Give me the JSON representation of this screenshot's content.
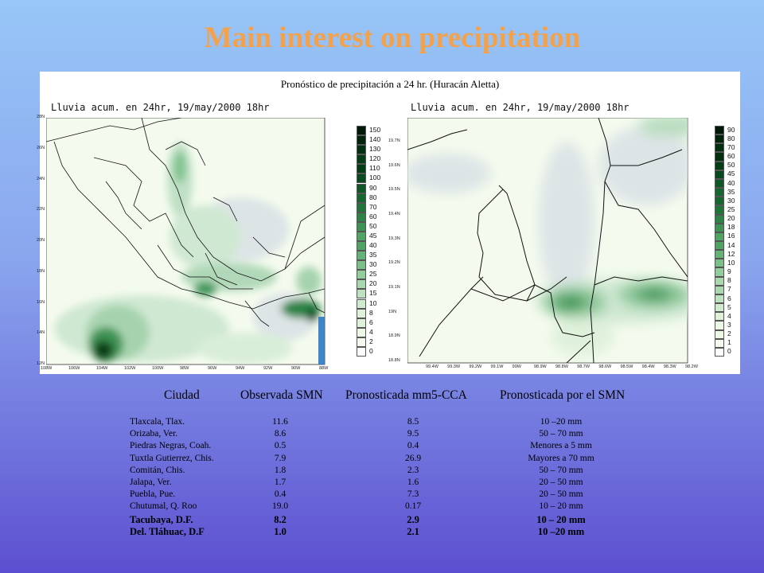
{
  "slide": {
    "title": "Main interest on precipitation"
  },
  "figure": {
    "heading": "Pronóstico de precipitación a 24 hr. (Huracán Aletta)",
    "left_map": {
      "title": "Lluvia acum. en 24hr, 19/may/2000 18hr",
      "lat_ticks": [
        "28N",
        "26N",
        "24N",
        "22N",
        "20N",
        "18N",
        "16N",
        "14N",
        "12N"
      ],
      "lon_ticks": [
        "108W",
        "106W",
        "104W",
        "102W",
        "100W",
        "98W",
        "96W",
        "94W",
        "92W",
        "90W",
        "88W"
      ]
    },
    "right_map": {
      "title": "Lluvia acum. en 24hr, 19/may/2000 18hr",
      "lat_ticks": [
        "19.7N",
        "19.6N",
        "19.5N",
        "19.4N",
        "19.3N",
        "19.2N",
        "19.1N",
        "19N",
        "18.9N",
        "18.8N"
      ],
      "lon_ticks": [
        "99.4W",
        "99.3W",
        "99.2W",
        "99.1W",
        "99W",
        "98.9W",
        "98.8W",
        "98.7W",
        "98.6W",
        "98.5W",
        "98.4W",
        "98.3W",
        "98.2W"
      ]
    },
    "left_colorbar": [
      "150",
      "140",
      "130",
      "120",
      "110",
      "100",
      "90",
      "80",
      "70",
      "60",
      "50",
      "45",
      "40",
      "35",
      "30",
      "25",
      "20",
      "15",
      "10",
      "8",
      "6",
      "4",
      "2",
      "0"
    ],
    "right_colorbar": [
      "90",
      "80",
      "70",
      "60",
      "50",
      "45",
      "40",
      "35",
      "30",
      "25",
      "20",
      "18",
      "16",
      "14",
      "12",
      "10",
      "9",
      "8",
      "7",
      "6",
      "5",
      "4",
      "3",
      "2",
      "1",
      "0"
    ],
    "palette": [
      "#ffffff",
      "#f4fbee",
      "#ecf7e6",
      "#dff1da",
      "#cfeacd",
      "#bde2bf",
      "#a9d8ae",
      "#92cd9c",
      "#7bc089",
      "#64b276",
      "#4fa363",
      "#3d9353",
      "#2e8446",
      "#21753a",
      "#166630",
      "#0d5826",
      "#074a1d",
      "#033d16",
      "#013010",
      "#00240b",
      "#001808"
    ],
    "map_background": "#f4fbee",
    "dry_region": "#dde4e6"
  },
  "table": {
    "headers": [
      "Ciudad",
      "Observada SMN",
      "Pronosticada mm5-CCA",
      "Pronosticada por el  SMN"
    ],
    "rows": [
      {
        "city": "Tlaxcala, Tlax.",
        "observed": "11.6",
        "mm5": "8.5",
        "smn": "10 –20 mm",
        "bold": false
      },
      {
        "city": "Orizaba, Ver.",
        "observed": "8.6",
        "mm5": "9.5",
        "smn": "50 – 70 mm",
        "bold": false
      },
      {
        "city": "Piedras Negras, Coah.",
        "observed": "0.5",
        "mm5": "0.4",
        "smn": "Menores a 5 mm",
        "bold": false
      },
      {
        "city": "Tuxtla Gutierrez, Chis.",
        "observed": "7.9",
        "mm5": "26.9",
        "smn": "Mayores a 70 mm",
        "bold": false
      },
      {
        "city": "Comitán, Chis.",
        "observed": "1.8",
        "mm5": "2.3",
        "smn": "50 – 70 mm",
        "bold": false
      },
      {
        "city": "Jalapa, Ver.",
        "observed": "1.7",
        "mm5": "1.6",
        "smn": "20 – 50 mm",
        "bold": false
      },
      {
        "city": "Puebla, Pue.",
        "observed": "0.4",
        "mm5": "7.3",
        "smn": "20 – 50 mm",
        "bold": false
      },
      {
        "city": "Chutumal, Q. Roo",
        "observed": "19.0",
        "mm5": "0.17",
        "smn": "10 – 20 mm",
        "bold": false
      },
      {
        "city": "Tacubaya, D.F.",
        "observed": "8.2",
        "mm5": "2.9",
        "smn": "10 – 20 mm",
        "bold": true
      },
      {
        "city": "Del. Tláhuac, D.F",
        "observed": "1.0",
        "mm5": "2.1",
        "smn": "10 –20 mm",
        "bold": true
      }
    ]
  }
}
